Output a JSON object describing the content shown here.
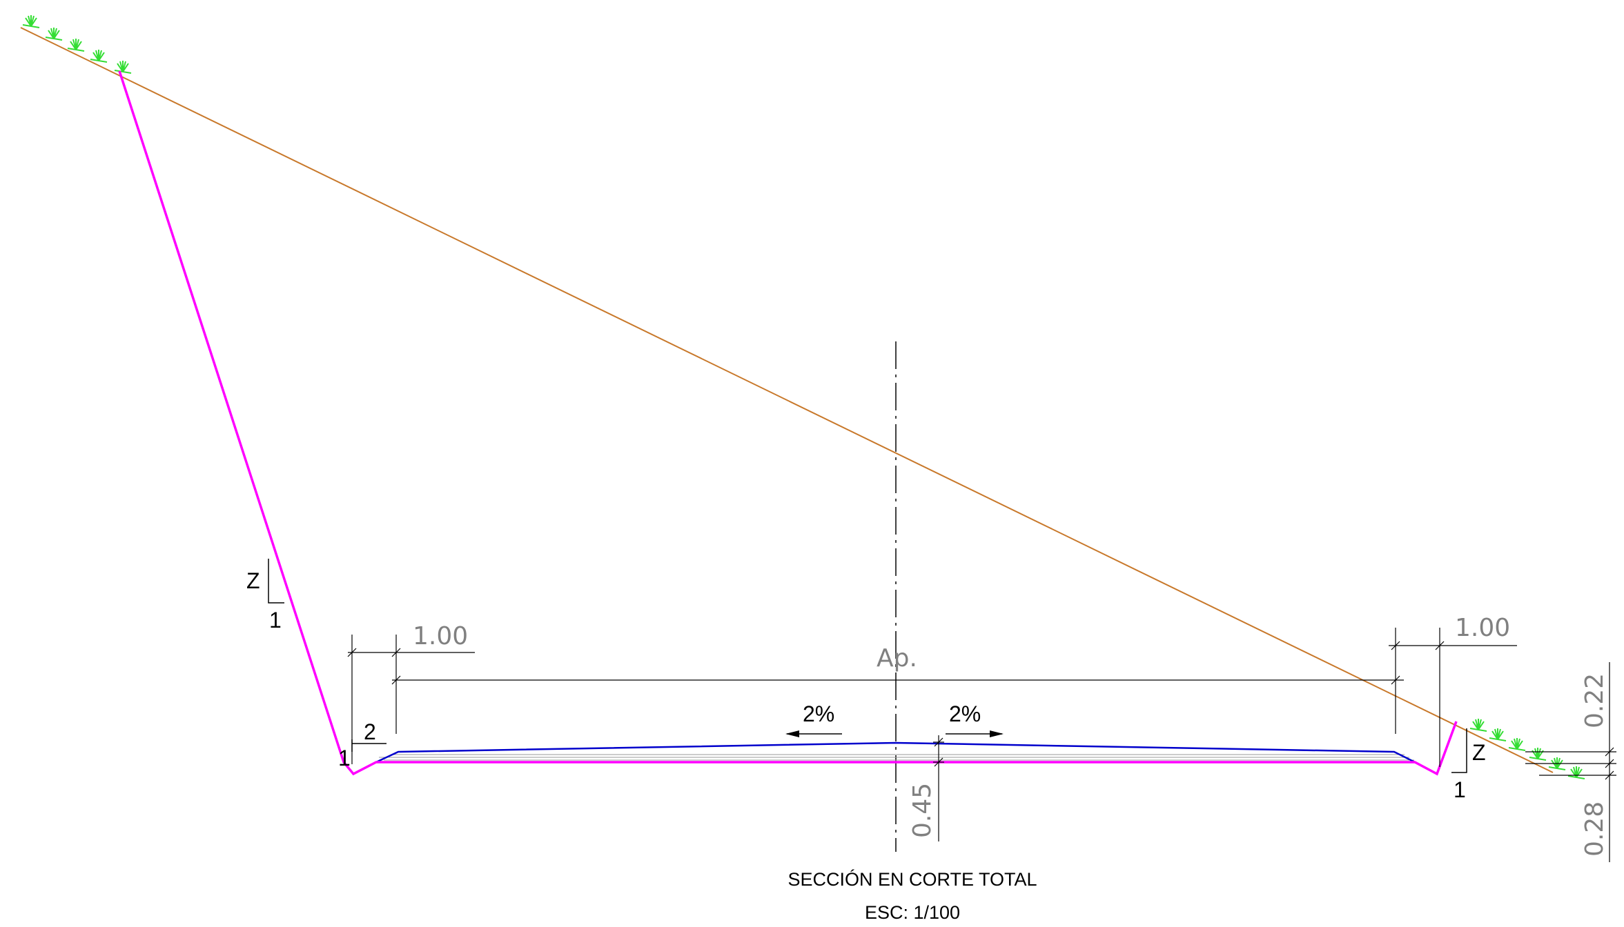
{
  "colors": {
    "cut_slope": "#ff00ff",
    "pavement": "#0000cc",
    "terrain": "#c8782a",
    "grass": "#33dd33",
    "dimension": "#808080",
    "axis": "#000000"
  },
  "icons": {
    "grass": "grass-tuft-icon",
    "arrow": "arrow-icon"
  },
  "labels": {
    "left_slope_z": "Z",
    "left_slope_one": "1",
    "left_ditch_two": "2",
    "left_ditch_one": "1",
    "right_slope_z": "Z",
    "right_slope_one": "1",
    "crown_left": "2%",
    "crown_right": "2%"
  },
  "dimensions": {
    "left_ditch_width": "1.00",
    "right_ditch_width": "1.00",
    "roadway": "Ap.",
    "pavement_thickness": "0.45",
    "right_height_top": "0.22",
    "right_height_bottom": "0.28"
  },
  "caption": {
    "title": "SECCIÓN EN CORTE TOTAL",
    "scale": "ESC: 1/100"
  }
}
